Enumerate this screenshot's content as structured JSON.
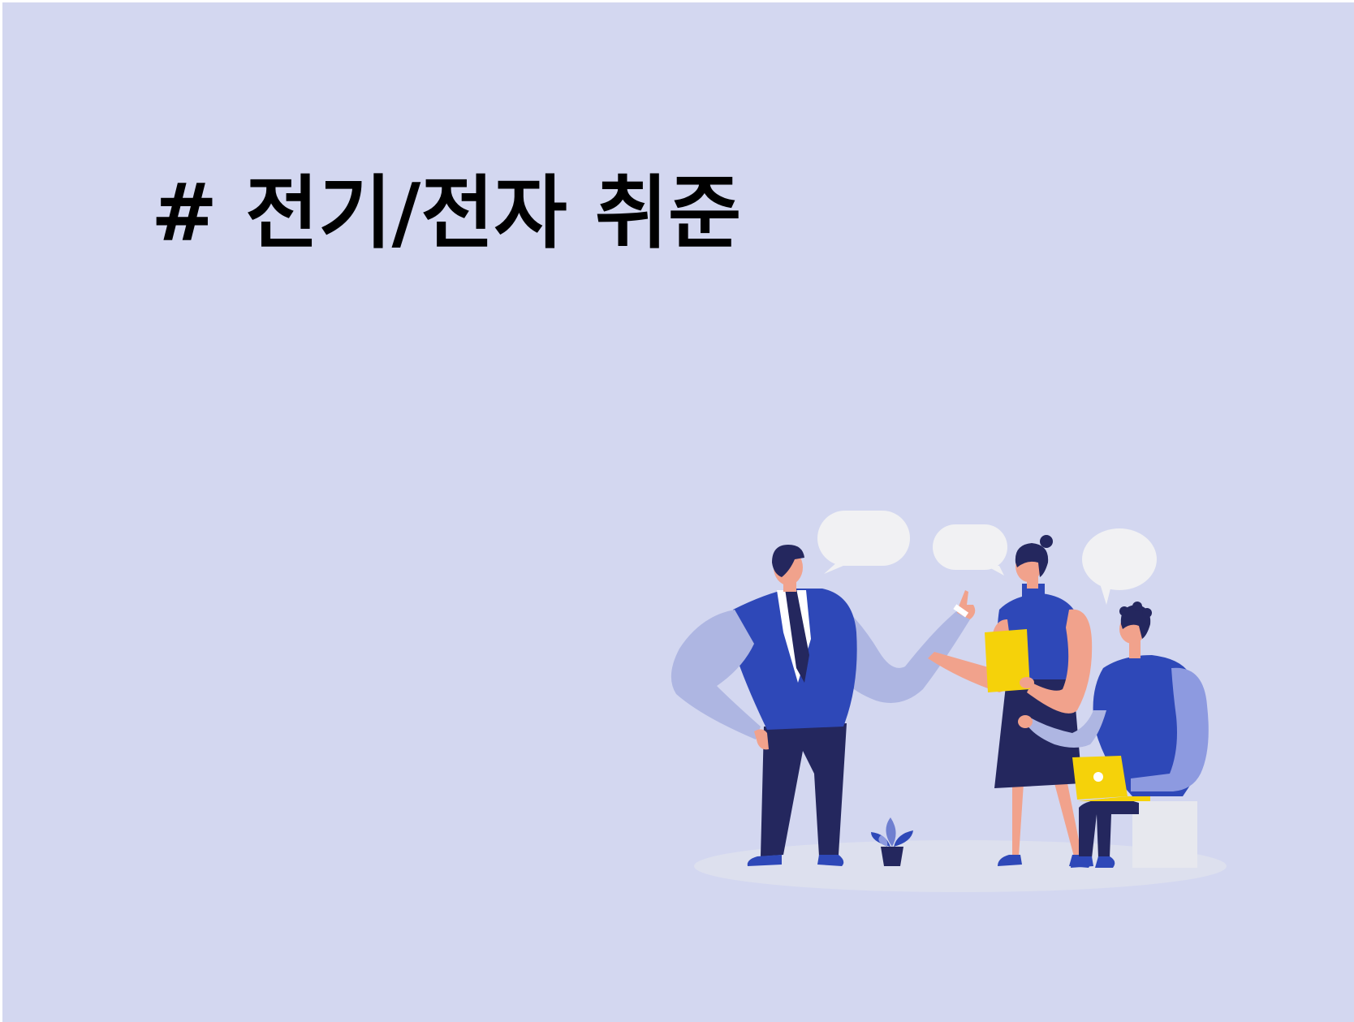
{
  "slide": {
    "title": "# 전기/전자 취준",
    "background_color": "#d3d7f0"
  },
  "illustration": {
    "icon": "team-discussion-illustration",
    "colors": {
      "blue": "#2e48b8",
      "light_blue": "#aeb6e2",
      "navy": "#24275e",
      "skin": "#f1a28c",
      "yellow": "#f5d20a",
      "bubble": "#f1f1f3",
      "floor": "#dde0ee"
    }
  }
}
